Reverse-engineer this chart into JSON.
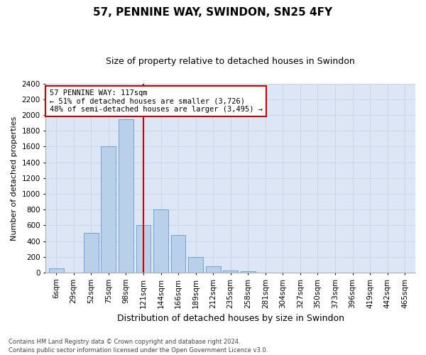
{
  "title1": "57, PENNINE WAY, SWINDON, SN25 4FY",
  "title2": "Size of property relative to detached houses in Swindon",
  "xlabel": "Distribution of detached houses by size in Swindon",
  "ylabel": "Number of detached properties",
  "categories": [
    "6sqm",
    "29sqm",
    "52sqm",
    "75sqm",
    "98sqm",
    "121sqm",
    "144sqm",
    "166sqm",
    "189sqm",
    "212sqm",
    "235sqm",
    "258sqm",
    "281sqm",
    "304sqm",
    "327sqm",
    "350sqm",
    "373sqm",
    "396sqm",
    "419sqm",
    "442sqm",
    "465sqm"
  ],
  "values": [
    50,
    0,
    500,
    1600,
    1950,
    600,
    800,
    475,
    200,
    80,
    30,
    20,
    0,
    0,
    0,
    0,
    0,
    0,
    0,
    0,
    0
  ],
  "bar_color": "#b8d0ea",
  "bar_edge_color": "#6699cc",
  "vline_color": "#cc0000",
  "vline_x": 5,
  "annotation_line1": "57 PENNINE WAY: 117sqm",
  "annotation_line2": "← 51% of detached houses are smaller (3,726)",
  "annotation_line3": "48% of semi-detached houses are larger (3,495) →",
  "annotation_box_color": "#ffffff",
  "annotation_box_edge": "#cc0000",
  "ylim": [
    0,
    2400
  ],
  "yticks": [
    0,
    200,
    400,
    600,
    800,
    1000,
    1200,
    1400,
    1600,
    1800,
    2000,
    2200,
    2400
  ],
  "grid_color": "#c8d4e8",
  "background_color": "#dce6f5",
  "footer1": "Contains HM Land Registry data © Crown copyright and database right 2024.",
  "footer2": "Contains public sector information licensed under the Open Government Licence v3.0.",
  "title1_fontsize": 11,
  "title2_fontsize": 9,
  "xlabel_fontsize": 9,
  "ylabel_fontsize": 8,
  "tick_fontsize": 7.5,
  "footer_fontsize": 6,
  "annotation_fontsize": 7.5
}
